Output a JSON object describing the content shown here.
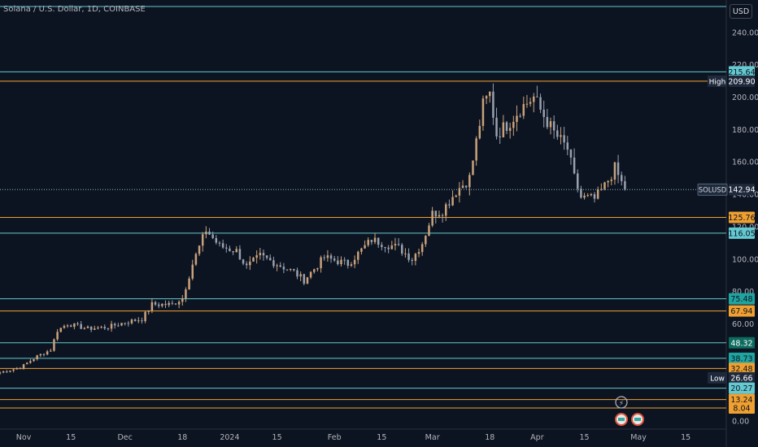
{
  "header": {
    "title": "Solana / U.S. Dollar, 1D, COINBASE",
    "currency": "USD"
  },
  "colors": {
    "background": "#0d1421",
    "up": "#c9a27c",
    "down": "#9aa1ae",
    "cyan": "#64c9d0",
    "orange": "#f0a030",
    "axis_text": "#b2b5be"
  },
  "chart_data": {
    "type": "candlestick",
    "symbol": "SOLUSD",
    "last_price": 142.94,
    "ylim": [
      -5,
      260
    ],
    "y_ticks": [
      0,
      20,
      40,
      60,
      80,
      100,
      120,
      140,
      160,
      180,
      200,
      220,
      240
    ],
    "y_tick_labels": [
      "0.00",
      "20.00",
      "40.00",
      "60.00",
      "80.00",
      "100.00",
      "120.00",
      "140.00",
      "160.00",
      "180.00",
      "200.00",
      "220.00",
      "240.00"
    ],
    "x_labels": [
      {
        "label": "Nov",
        "date": "2023-11-01"
      },
      {
        "label": "15",
        "date": "2023-11-15"
      },
      {
        "label": "Dec",
        "date": "2023-12-01"
      },
      {
        "label": "18",
        "date": "2023-12-18"
      },
      {
        "label": "2024",
        "date": "2024-01-01"
      },
      {
        "label": "15",
        "date": "2024-01-15"
      },
      {
        "label": "Feb",
        "date": "2024-02-01"
      },
      {
        "label": "15",
        "date": "2024-02-15"
      },
      {
        "label": "Mar",
        "date": "2024-03-01"
      },
      {
        "label": "18",
        "date": "2024-03-18"
      },
      {
        "label": "Apr",
        "date": "2024-04-01"
      },
      {
        "label": "15",
        "date": "2024-04-15"
      },
      {
        "label": "May",
        "date": "2024-05-01"
      },
      {
        "label": "15",
        "date": "2024-05-15"
      }
    ],
    "x_range": [
      "2023-10-25",
      "2024-05-27"
    ],
    "horizontal_lines": [
      {
        "value": 256,
        "color": "cyan"
      },
      {
        "value": 215.64,
        "color": "cyan",
        "label": "215.64"
      },
      {
        "value": 209.9,
        "color": "orange",
        "label": "209.90",
        "tag": "High"
      },
      {
        "value": 125.76,
        "color": "orange",
        "label": "125.76"
      },
      {
        "value": 116.05,
        "color": "cyan",
        "label": "116.05"
      },
      {
        "value": 75.48,
        "color": "cyan",
        "label": "75.48"
      },
      {
        "value": 67.94,
        "color": "orange",
        "label": "67.94"
      },
      {
        "value": 48.32,
        "color": "cyan",
        "label": "48.32"
      },
      {
        "value": 38.73,
        "color": "cyan",
        "label": "38.73"
      },
      {
        "value": 32.48,
        "color": "orange",
        "label": "32.48"
      },
      {
        "value": 26.66,
        "color": "none",
        "label": "26.66",
        "tag": "Low"
      },
      {
        "value": 20.27,
        "color": "cyan",
        "label": "20.27"
      },
      {
        "value": 13.24,
        "color": "orange",
        "label": "13.24"
      },
      {
        "value": 8.04,
        "color": "orange",
        "label": "8.04"
      }
    ],
    "price_anchors": [
      [
        "2023-10-25",
        30
      ],
      [
        "2023-10-31",
        33
      ],
      [
        "2023-11-05",
        40
      ],
      [
        "2023-11-09",
        44
      ],
      [
        "2023-11-11",
        56
      ],
      [
        "2023-11-14",
        60
      ],
      [
        "2023-11-20",
        57
      ],
      [
        "2023-11-26",
        58
      ],
      [
        "2023-12-01",
        61
      ],
      [
        "2023-12-06",
        63
      ],
      [
        "2023-12-09",
        72
      ],
      [
        "2023-12-15",
        72
      ],
      [
        "2023-12-18",
        76
      ],
      [
        "2023-12-21",
        97
      ],
      [
        "2023-12-25",
        118
      ],
      [
        "2023-12-29",
        108
      ],
      [
        "2024-01-03",
        105
      ],
      [
        "2024-01-06",
        95
      ],
      [
        "2024-01-10",
        102
      ],
      [
        "2024-01-15",
        97
      ],
      [
        "2024-01-20",
        92
      ],
      [
        "2024-01-23",
        87
      ],
      [
        "2024-01-29",
        101
      ],
      [
        "2024-02-05",
        97
      ],
      [
        "2024-02-12",
        112
      ],
      [
        "2024-02-15",
        110
      ],
      [
        "2024-02-20",
        107
      ],
      [
        "2024-02-24",
        100
      ],
      [
        "2024-02-27",
        110
      ],
      [
        "2024-03-01",
        128
      ],
      [
        "2024-03-04",
        130
      ],
      [
        "2024-03-08",
        142
      ],
      [
        "2024-03-12",
        150
      ],
      [
        "2024-03-16",
        195
      ],
      [
        "2024-03-18",
        202
      ],
      [
        "2024-03-20",
        177
      ],
      [
        "2024-03-24",
        185
      ],
      [
        "2024-03-27",
        193
      ],
      [
        "2024-03-31",
        200
      ],
      [
        "2024-04-02",
        192
      ],
      [
        "2024-04-06",
        178
      ],
      [
        "2024-04-10",
        168
      ],
      [
        "2024-04-12",
        150
      ],
      [
        "2024-04-14",
        138
      ],
      [
        "2024-04-18",
        137
      ],
      [
        "2024-04-21",
        145
      ],
      [
        "2024-04-24",
        156
      ],
      [
        "2024-04-26",
        147
      ],
      [
        "2024-04-27",
        142.94
      ]
    ]
  }
}
